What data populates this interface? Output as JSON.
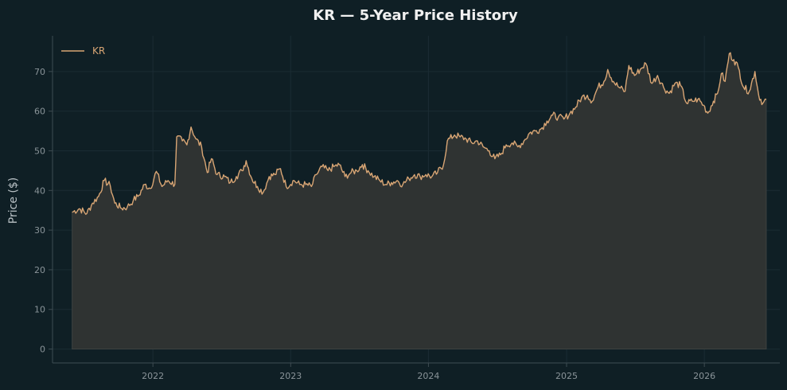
{
  "chart_data": {
    "type": "area",
    "title": "KR — 5-Year Price History",
    "xlabel": "",
    "ylabel": "Price ($)",
    "ylim": [
      -3.5,
      79
    ],
    "xlim": [
      "2021-04-10",
      "2026-07-20"
    ],
    "grid": true,
    "legend_position": "top-left",
    "x_ticks": [
      "2022",
      "2023",
      "2024",
      "2025",
      "2026"
    ],
    "y_ticks": [
      0,
      10,
      20,
      30,
      40,
      50,
      60,
      70
    ],
    "colors": {
      "background": "#0f1f25",
      "line": "#d8a574",
      "fill": "#2f3332",
      "text": "#e8e8e8",
      "tick": "#8a9499",
      "axis": "#3e4c52",
      "grid": "#1b2c33"
    },
    "series": [
      {
        "name": "KR",
        "points": [
          [
            "2021-06-01",
            34.5
          ],
          [
            "2021-06-20",
            35.4
          ],
          [
            "2021-07-10",
            34.2
          ],
          [
            "2021-07-25",
            36.8
          ],
          [
            "2021-08-10",
            38.5
          ],
          [
            "2021-08-25",
            42.5
          ],
          [
            "2021-09-10",
            41.2
          ],
          [
            "2021-09-22",
            36.8
          ],
          [
            "2021-10-10",
            35.5
          ],
          [
            "2021-10-25",
            35.8
          ],
          [
            "2021-11-10",
            37.5
          ],
          [
            "2021-11-25",
            38.8
          ],
          [
            "2021-12-10",
            41.5
          ],
          [
            "2021-12-25",
            40.5
          ],
          [
            "2022-01-10",
            44.8
          ],
          [
            "2022-01-25",
            41.0
          ],
          [
            "2022-02-10",
            42.5
          ],
          [
            "2022-02-28",
            41.5
          ],
          [
            "2022-03-05",
            53.5
          ],
          [
            "2022-03-20",
            52.5
          ],
          [
            "2022-04-01",
            51.5
          ],
          [
            "2022-04-12",
            56.0
          ],
          [
            "2022-04-25",
            53.0
          ],
          [
            "2022-05-10",
            51.0
          ],
          [
            "2022-05-25",
            44.5
          ],
          [
            "2022-06-05",
            48.0
          ],
          [
            "2022-06-20",
            44.0
          ],
          [
            "2022-07-10",
            43.5
          ],
          [
            "2022-07-25",
            42.0
          ],
          [
            "2022-08-10",
            43.5
          ],
          [
            "2022-08-25",
            45.0
          ],
          [
            "2022-09-05",
            47.5
          ],
          [
            "2022-09-20",
            43.0
          ],
          [
            "2022-10-05",
            41.0
          ],
          [
            "2022-10-20",
            39.5
          ],
          [
            "2022-11-05",
            43.5
          ],
          [
            "2022-11-20",
            44.0
          ],
          [
            "2022-12-05",
            45.5
          ],
          [
            "2022-12-20",
            41.0
          ],
          [
            "2023-01-10",
            42.5
          ],
          [
            "2023-01-25",
            41.5
          ],
          [
            "2023-02-10",
            41.5
          ],
          [
            "2023-02-25",
            41.0
          ],
          [
            "2023-03-10",
            44.0
          ],
          [
            "2023-03-25",
            46.0
          ],
          [
            "2023-04-10",
            45.0
          ],
          [
            "2023-04-25",
            46.0
          ],
          [
            "2023-05-10",
            46.5
          ],
          [
            "2023-05-25",
            43.5
          ],
          [
            "2023-06-10",
            44.5
          ],
          [
            "2023-06-25",
            45.0
          ],
          [
            "2023-07-10",
            46.5
          ],
          [
            "2023-07-25",
            45.0
          ],
          [
            "2023-08-10",
            43.5
          ],
          [
            "2023-08-25",
            42.5
          ],
          [
            "2023-09-10",
            41.5
          ],
          [
            "2023-09-25",
            42.0
          ],
          [
            "2023-10-10",
            42.5
          ],
          [
            "2023-10-25",
            41.5
          ],
          [
            "2023-11-10",
            43.0
          ],
          [
            "2023-11-25",
            44.0
          ],
          [
            "2023-12-10",
            43.5
          ],
          [
            "2023-12-25",
            44.0
          ],
          [
            "2024-01-10",
            43.5
          ],
          [
            "2024-01-25",
            44.5
          ],
          [
            "2024-02-10",
            46.5
          ],
          [
            "2024-02-20",
            52.5
          ],
          [
            "2024-03-10",
            54.0
          ],
          [
            "2024-03-25",
            53.5
          ],
          [
            "2024-04-10",
            53.0
          ],
          [
            "2024-04-25",
            52.0
          ],
          [
            "2024-05-10",
            52.5
          ],
          [
            "2024-05-25",
            51.0
          ],
          [
            "2024-06-10",
            50.0
          ],
          [
            "2024-06-25",
            48.0
          ],
          [
            "2024-07-10",
            49.0
          ],
          [
            "2024-07-25",
            51.5
          ],
          [
            "2024-08-10",
            52.0
          ],
          [
            "2024-08-25",
            51.0
          ],
          [
            "2024-09-10",
            52.5
          ],
          [
            "2024-09-25",
            54.5
          ],
          [
            "2024-10-10",
            55.0
          ],
          [
            "2024-10-25",
            55.5
          ],
          [
            "2024-11-10",
            57.5
          ],
          [
            "2024-11-25",
            59.0
          ],
          [
            "2024-12-10",
            58.5
          ],
          [
            "2024-12-25",
            58.0
          ],
          [
            "2025-01-10",
            59.5
          ],
          [
            "2025-01-25",
            61.0
          ],
          [
            "2025-02-10",
            63.5
          ],
          [
            "2025-02-25",
            64.0
          ],
          [
            "2025-03-10",
            62.5
          ],
          [
            "2025-03-25",
            66.0
          ],
          [
            "2025-04-10",
            67.5
          ],
          [
            "2025-04-20",
            70.5
          ],
          [
            "2025-05-05",
            67.5
          ],
          [
            "2025-05-20",
            66.0
          ],
          [
            "2025-06-05",
            65.0
          ],
          [
            "2025-06-15",
            71.5
          ],
          [
            "2025-06-30",
            69.0
          ],
          [
            "2025-07-15",
            70.5
          ],
          [
            "2025-07-30",
            72.0
          ],
          [
            "2025-08-15",
            67.0
          ],
          [
            "2025-08-30",
            69.0
          ],
          [
            "2025-09-15",
            66.0
          ],
          [
            "2025-09-30",
            64.5
          ],
          [
            "2025-10-15",
            67.0
          ],
          [
            "2025-10-30",
            66.5
          ],
          [
            "2025-11-15",
            62.0
          ],
          [
            "2025-11-30",
            62.5
          ],
          [
            "2025-12-15",
            63.0
          ],
          [
            "2025-12-30",
            61.5
          ],
          [
            "2026-01-10",
            59.5
          ],
          [
            "2026-01-25",
            62.5
          ],
          [
            "2026-02-05",
            64.5
          ],
          [
            "2026-02-15",
            69.5
          ],
          [
            "2026-02-25",
            67.5
          ],
          [
            "2026-03-08",
            74.5
          ],
          [
            "2026-03-20",
            73.0
          ],
          [
            "2026-04-01",
            71.0
          ],
          [
            "2026-04-15",
            66.0
          ],
          [
            "2026-04-30",
            65.0
          ],
          [
            "2026-05-15",
            70.0
          ],
          [
            "2026-05-25",
            64.0
          ],
          [
            "2026-06-05",
            62.0
          ],
          [
            "2026-06-14",
            63.0
          ]
        ]
      }
    ]
  }
}
